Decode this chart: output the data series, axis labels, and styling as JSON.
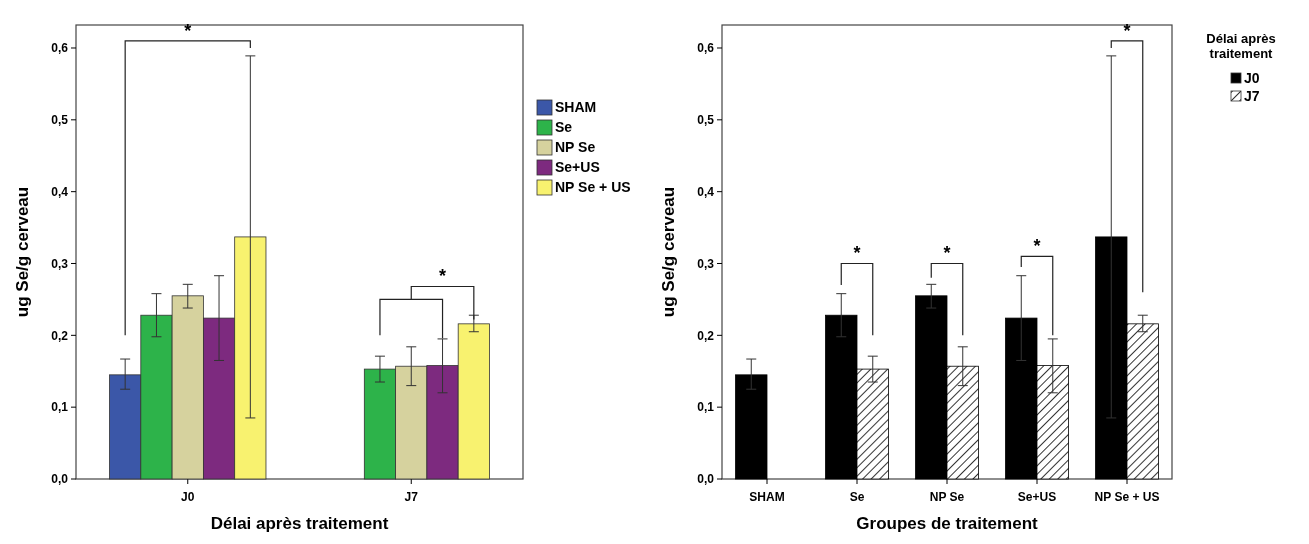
{
  "chart_data": [
    {
      "type": "bar",
      "xlabel": "Délai après traitement",
      "ylabel": "ug Se/g cerveau",
      "categories": [
        "J0",
        "J7"
      ],
      "ylim": [
        0,
        0.632
      ],
      "yticks": [
        {
          "value": 0,
          "label": "0,0"
        },
        {
          "value": 0.1,
          "label": "0,1"
        },
        {
          "value": 0.2,
          "label": "0,2"
        },
        {
          "value": 0.3,
          "label": "0,3"
        },
        {
          "value": 0.4,
          "label": "0,4"
        },
        {
          "value": 0.5,
          "label": "0,5"
        },
        {
          "value": 0.6,
          "label": "0,6"
        }
      ],
      "legend": "right",
      "grid": false,
      "series": [
        {
          "name": "SHAM",
          "color": "#3b57a8",
          "values": [
            0.145,
            null
          ],
          "errors": [
            [
              0.125,
              0.167
            ],
            null
          ]
        },
        {
          "name": "Se",
          "color": "#2db34a",
          "values": [
            0.228,
            0.153
          ],
          "errors": [
            [
              0.198,
              0.258
            ],
            [
              0.135,
              0.171
            ]
          ]
        },
        {
          "name": "NP Se",
          "color": "#d6d29e",
          "values": [
            0.255,
            0.157
          ],
          "errors": [
            [
              0.238,
              0.271
            ],
            [
              0.13,
              0.184
            ]
          ]
        },
        {
          "name": "Se+US",
          "color": "#7d2a7f",
          "values": [
            0.224,
            0.158
          ],
          "errors": [
            [
              0.165,
              0.283
            ],
            [
              0.12,
              0.195
            ]
          ]
        },
        {
          "name": "NP Se + US",
          "color": "#f8f26f",
          "values": [
            0.337,
            0.216
          ],
          "errors": [
            [
              0.085,
              0.589
            ],
            [
              0.205,
              0.228
            ]
          ]
        }
      ],
      "annotations": [
        "*",
        "*"
      ]
    },
    {
      "type": "bar",
      "xlabel": "Groupes de traitement",
      "ylabel": "ug Se/g cerveau",
      "categories": [
        "SHAM",
        "Se",
        "NP Se",
        "Se+US",
        "NP Se + US"
      ],
      "ylim": [
        0,
        0.632
      ],
      "yticks": [
        {
          "value": 0,
          "label": "0,0"
        },
        {
          "value": 0.1,
          "label": "0,1"
        },
        {
          "value": 0.2,
          "label": "0,2"
        },
        {
          "value": 0.3,
          "label": "0,3"
        },
        {
          "value": 0.4,
          "label": "0,4"
        },
        {
          "value": 0.5,
          "label": "0,5"
        },
        {
          "value": 0.6,
          "label": "0,6"
        }
      ],
      "legend": "right",
      "legend_title": "Délai après traitement",
      "grid": false,
      "series": [
        {
          "name": "J0",
          "color": "#000000",
          "values": [
            0.145,
            0.228,
            0.255,
            0.224,
            0.337
          ],
          "errors": [
            [
              0.125,
              0.167
            ],
            [
              0.198,
              0.258
            ],
            [
              0.238,
              0.271
            ],
            [
              0.165,
              0.283
            ],
            [
              0.085,
              0.589
            ]
          ]
        },
        {
          "name": "J7",
          "color": "#000000",
          "values": [
            null,
            0.153,
            0.157,
            0.158,
            0.216
          ],
          "errors": [
            null,
            [
              0.135,
              0.171
            ],
            [
              0.13,
              0.184
            ],
            [
              0.12,
              0.195
            ],
            [
              0.205,
              0.228
            ]
          ]
        }
      ],
      "annotations": [
        "*",
        "*",
        "*",
        "*"
      ]
    }
  ]
}
